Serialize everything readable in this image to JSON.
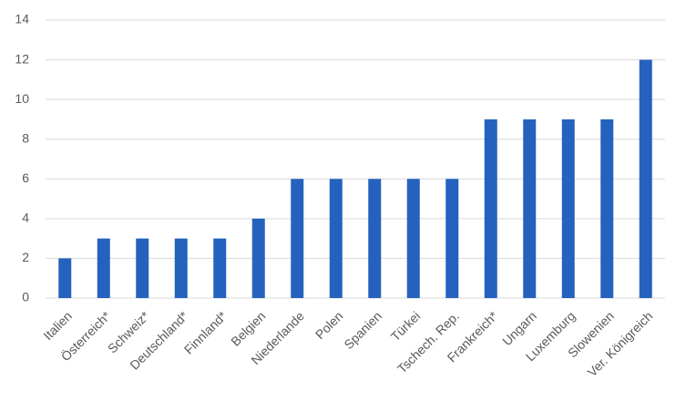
{
  "chart_data": {
    "type": "bar",
    "categories": [
      "Italien",
      "Österreich*",
      "Schweiz*",
      "Deutschland*",
      "Finnland*",
      "Belgien",
      "Niederlande",
      "Polen",
      "Spanien",
      "Türkei",
      "Tschech. Rep.",
      "Frankreich*",
      "Ungarn",
      "Luxemburg",
      "Slowenien",
      "Ver. Königreich"
    ],
    "values": [
      2,
      3,
      3,
      3,
      3,
      4,
      6,
      6,
      6,
      6,
      6,
      9,
      9,
      9,
      9,
      12
    ],
    "color": "#2462be",
    "ylim": [
      0,
      14
    ],
    "yticks": [
      0,
      2,
      4,
      6,
      8,
      10,
      12,
      14
    ],
    "grid": true
  }
}
